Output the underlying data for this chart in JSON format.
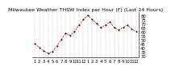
{
  "title": "Milwaukee Weather THSW Index per Hour (F) (Last 24 Hours)",
  "x_labels": [
    "1",
    "2",
    "3",
    "4",
    "5",
    "6",
    "7",
    "8",
    "9",
    "10",
    "11",
    "12",
    "1",
    "2",
    "3",
    "4",
    "5",
    "6",
    "7",
    "8",
    "9",
    "10",
    "11",
    "12"
  ],
  "y_values": [
    45,
    40,
    36,
    33,
    35,
    42,
    50,
    58,
    55,
    60,
    68,
    75,
    80,
    75,
    70,
    65,
    68,
    72,
    65,
    62,
    65,
    68,
    63,
    60
  ],
  "ylim": [
    28,
    84
  ],
  "yticks": [
    30,
    35,
    40,
    45,
    50,
    55,
    60,
    65,
    70,
    75,
    80
  ],
  "line_color": "#cc0000",
  "marker_color": "#000000",
  "bg_color": "#ffffff",
  "grid_color": "#888888",
  "title_color": "#000000",
  "title_fontsize": 4.5,
  "tick_fontsize": 3.8,
  "label_color": "#000000"
}
